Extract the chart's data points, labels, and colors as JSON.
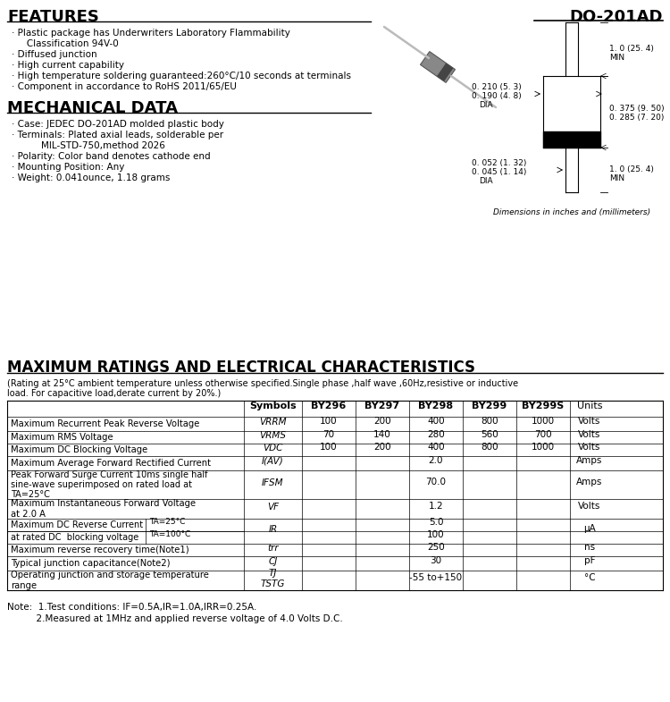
{
  "title_part": "DO-201AD",
  "section1_title": "FEATURES",
  "features": [
    [
      "Plastic package has Underwriters Laboratory Flammability",
      "   Classification 94V-0"
    ],
    [
      "Diffused junction"
    ],
    [
      "High current capability"
    ],
    [
      "High temperature soldering guaranteed:260°C/10 seconds at terminals"
    ],
    [
      "Component in accordance to RoHS 2011/65/EU"
    ]
  ],
  "section2_title": "MECHANICAL DATA",
  "mech_data": [
    [
      "Case: JEDEC DO-201AD molded plastic body"
    ],
    [
      "Terminals: Plated axial leads, solderable per",
      "        MIL-STD-750,method 2026"
    ],
    [
      "Polarity: Color band denotes cathode end"
    ],
    [
      "Mounting Position: Any"
    ],
    [
      "Weight: 0.041ounce, 1.18 grams"
    ]
  ],
  "section3_title": "MAXIMUM RATINGS AND ELECTRICAL CHARACTERISTICS",
  "section3_sub1": "(Rating at 25°C ambient temperature unless otherwise specified.Single phase ,half wave ,60Hz,resistive or inductive",
  "section3_sub2": "load. For capacitive load,derate current by 20%.)",
  "table_headers": [
    "",
    "Symbols",
    "BY296",
    "BY297",
    "BY298",
    "BY299",
    "BY299S",
    "Units"
  ],
  "note_line1": "Note:  1.Test conditions: IF=0.5A,IR=1.0A,IRR=0.25A.",
  "note_line2": "          2.Measured at 1MHz and applied reverse voltage of 4.0 Volts D.C.",
  "dim_label": "Dimensions in inches and (millimeters)"
}
